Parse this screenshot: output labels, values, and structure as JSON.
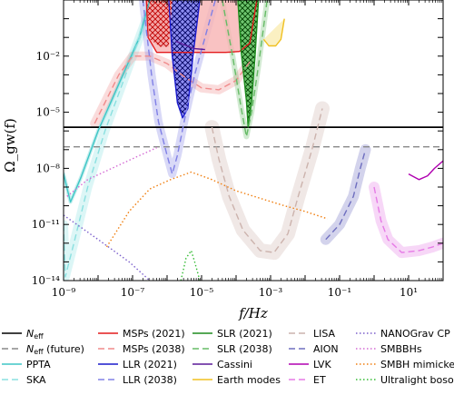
{
  "chart_data": {
    "type": "line",
    "xlabel": "f/Hz",
    "ylabel": "Ω_gw(f)",
    "xscale": "log",
    "yscale": "log",
    "xlim": [
      1e-09,
      100
    ],
    "ylim": [
      1e-14,
      10
    ],
    "x_ticks": [
      {
        "exp": -9,
        "label": "10⁻⁹"
      },
      {
        "exp": -7,
        "label": "10⁻⁷"
      },
      {
        "exp": -5,
        "label": "10⁻⁵"
      },
      {
        "exp": -3,
        "label": "10⁻³"
      },
      {
        "exp": -1,
        "label": "10⁻¹"
      },
      {
        "exp": 1,
        "label": "10¹"
      }
    ],
    "y_ticks": [
      {
        "exp": -14,
        "label": "10⁻¹⁴"
      },
      {
        "exp": -11,
        "label": "10⁻¹¹"
      },
      {
        "exp": -8,
        "label": "10⁻⁸"
      },
      {
        "exp": -5,
        "label": "10⁻⁵"
      },
      {
        "exp": -2,
        "label": "10⁻²"
      }
    ],
    "legend_placement": "below",
    "series": [
      {
        "name": "N_eff",
        "label_main": "N",
        "label_sub": "eff",
        "color": "#000000",
        "style": "solid",
        "points": [
          [
            -9,
            -5.8
          ],
          [
            2,
            -5.8
          ]
        ]
      },
      {
        "name": "N_eff (future)",
        "label_main": "N",
        "label_sub": "eff",
        "label_suffix": " (future)",
        "color": "#888888",
        "style": "dashed",
        "points": [
          [
            -9,
            -6.85
          ],
          [
            2,
            -6.85
          ]
        ]
      },
      {
        "name": "PPTA",
        "label": "PPTA",
        "color": "#3ec6c6",
        "style": "solid",
        "points": [
          [
            -9,
            -8.3
          ],
          [
            -8.8,
            -9.8
          ],
          [
            -8.5,
            -8.5
          ],
          [
            -8.0,
            -6.0
          ],
          [
            -7.4,
            -3.5
          ],
          [
            -6.8,
            -1.0
          ],
          [
            -6.5,
            1.0
          ]
        ]
      },
      {
        "name": "SKA",
        "label": "SKA",
        "color": "#8ae0e0",
        "style": "dashed",
        "points": [
          [
            -9,
            -11.0
          ],
          [
            -8.95,
            -13.8
          ],
          [
            -8.7,
            -12.0
          ],
          [
            -8.3,
            -9.0
          ],
          [
            -7.8,
            -6.0
          ],
          [
            -7.2,
            -3.0
          ],
          [
            -6.6,
            0.0
          ]
        ]
      },
      {
        "name": "MSPs (2021)",
        "label": "MSPs (2021)",
        "color": "#e31a1c",
        "style": "solid",
        "points": [
          [
            -6.6,
            1.0
          ],
          [
            -6.55,
            -1.0
          ],
          [
            -6.3,
            -1.8
          ],
          [
            -5.8,
            -1.8
          ],
          [
            -5.3,
            -1.8
          ],
          [
            -4.8,
            -1.8
          ],
          [
            -4.3,
            -1.8
          ],
          [
            -3.9,
            -1.75
          ],
          [
            -3.6,
            -1.3
          ],
          [
            -3.4,
            1.0
          ]
        ]
      },
      {
        "name": "MSPs (2038)",
        "label": "MSPs (2038)",
        "color": "#f08a8a",
        "style": "dashed",
        "points": [
          [
            -8.1,
            -5.6
          ],
          [
            -7.4,
            -3.0
          ],
          [
            -7.0,
            -2.0
          ],
          [
            -6.5,
            -2.0
          ],
          [
            -6.0,
            -2.4
          ],
          [
            -5.5,
            -3.1
          ],
          [
            -5.0,
            -3.7
          ],
          [
            -4.5,
            -3.8
          ],
          [
            -4.0,
            -3.3
          ],
          [
            -3.6,
            -2.3
          ]
        ]
      },
      {
        "name": "LLR (2021)",
        "label": "LLR (2021)",
        "color": "#1a1acc",
        "style": "solid",
        "points": [
          [
            -5.95,
            1.0
          ],
          [
            -5.85,
            -2.0
          ],
          [
            -5.7,
            -4.5
          ],
          [
            -5.55,
            -5.3
          ],
          [
            -5.4,
            -4.8
          ],
          [
            -5.25,
            -2.0
          ],
          [
            -5.05,
            1.0
          ]
        ]
      },
      {
        "name": "LLR (2038)",
        "label": "LLR (2038)",
        "color": "#8080e6",
        "style": "dashed",
        "points": [
          [
            -6.7,
            1.0
          ],
          [
            -6.45,
            -3.0
          ],
          [
            -6.25,
            -5.5
          ],
          [
            -6.0,
            -7.3
          ],
          [
            -5.85,
            -8.3
          ],
          [
            -5.7,
            -7.3
          ],
          [
            -5.45,
            -5.0
          ],
          [
            -5.2,
            -3.0
          ],
          [
            -4.9,
            -1.0
          ],
          [
            -4.6,
            1.0
          ]
        ]
      },
      {
        "name": "SLR (2021)",
        "label": "SLR (2021)",
        "color": "#1e8c1e",
        "style": "solid",
        "points": [
          [
            -3.95,
            1.0
          ],
          [
            -3.85,
            -1.8
          ],
          [
            -3.7,
            -4.4
          ],
          [
            -3.65,
            -5.8
          ],
          [
            -3.55,
            -4.4
          ],
          [
            -3.45,
            -2.0
          ],
          [
            -3.35,
            1.0
          ]
        ]
      },
      {
        "name": "SLR (2038)",
        "label": "SLR (2038)",
        "color": "#66bb66",
        "style": "dashed",
        "points": [
          [
            -4.4,
            1.0
          ],
          [
            -4.1,
            -2.0
          ],
          [
            -3.85,
            -4.8
          ],
          [
            -3.7,
            -6.3
          ],
          [
            -3.55,
            -5.0
          ],
          [
            -3.35,
            -2.5
          ],
          [
            -3.1,
            1.0
          ]
        ]
      },
      {
        "name": "Cassini",
        "label": "Cassini",
        "color": "#5b1a99",
        "style": "solid",
        "points": [
          [
            -5.75,
            -1.2
          ],
          [
            -5.5,
            -1.4
          ],
          [
            -5.2,
            -1.6
          ],
          [
            -4.9,
            -1.65
          ]
        ]
      },
      {
        "name": "Earth modes",
        "label": "Earth modes",
        "color": "#f0c020",
        "style": "solid",
        "points": [
          [
            -3.2,
            -1.1
          ],
          [
            -3.05,
            -1.45
          ],
          [
            -2.85,
            -1.45
          ],
          [
            -2.7,
            -1.1
          ],
          [
            -2.6,
            0.0
          ]
        ]
      },
      {
        "name": "LISA",
        "label": "LISA",
        "color": "#ccb3ad",
        "style": "dashed",
        "points": [
          [
            -4.7,
            -5.8
          ],
          [
            -4.5,
            -7.5
          ],
          [
            -4.2,
            -9.5
          ],
          [
            -3.8,
            -11.3
          ],
          [
            -3.3,
            -12.4
          ],
          [
            -2.9,
            -12.5
          ],
          [
            -2.5,
            -11.5
          ],
          [
            -2.2,
            -9.5
          ],
          [
            -1.8,
            -7.0
          ],
          [
            -1.5,
            -4.8
          ]
        ]
      },
      {
        "name": "AION",
        "label": "AION",
        "color": "#6e6ebf",
        "style": "dashed",
        "points": [
          [
            -1.4,
            -11.8
          ],
          [
            -1.0,
            -11.0
          ],
          [
            -0.6,
            -9.5
          ],
          [
            -0.4,
            -8.0
          ],
          [
            -0.25,
            -7.0
          ]
        ]
      },
      {
        "name": "LVK",
        "label": "LVK",
        "color": "#b000b0",
        "style": "solid",
        "points": [
          [
            1.0,
            -8.3
          ],
          [
            1.3,
            -8.6
          ],
          [
            1.55,
            -8.4
          ],
          [
            1.75,
            -8.0
          ],
          [
            2.0,
            -7.6
          ]
        ]
      },
      {
        "name": "ET",
        "label": "ET",
        "color": "#e67ae6",
        "style": "dashed",
        "points": [
          [
            0.0,
            -9.0
          ],
          [
            0.2,
            -10.8
          ],
          [
            0.4,
            -11.8
          ],
          [
            0.8,
            -12.5
          ],
          [
            1.3,
            -12.4
          ],
          [
            1.7,
            -12.2
          ],
          [
            2.0,
            -12.0
          ]
        ]
      },
      {
        "name": "NANOGrav CP",
        "label": "NANOGrav CP",
        "color": "#7b5fcc",
        "style": "dotted",
        "points": [
          [
            -9.0,
            -10.5
          ],
          [
            -8.0,
            -11.8
          ],
          [
            -7.1,
            -13.0
          ],
          [
            -6.5,
            -14.0
          ]
        ]
      },
      {
        "name": "SMBBHs",
        "label": "SMBBHs",
        "color": "#d46ad4",
        "style": "dotted",
        "points": [
          [
            -8.9,
            -9.5
          ],
          [
            -8.3,
            -8.6
          ],
          [
            -7.6,
            -8.0
          ],
          [
            -6.9,
            -7.4
          ],
          [
            -6.3,
            -6.9
          ]
        ]
      },
      {
        "name": "SMBH mimickers",
        "label": "SMBH mimickers",
        "color": "#f07f10",
        "style": "dotted",
        "points": [
          [
            -7.75,
            -12.2
          ],
          [
            -7.1,
            -10.3
          ],
          [
            -6.5,
            -9.1
          ],
          [
            -5.9,
            -8.6
          ],
          [
            -5.3,
            -8.2
          ],
          [
            -4.7,
            -8.6
          ],
          [
            -4.0,
            -9.2
          ],
          [
            -3.3,
            -9.6
          ],
          [
            -2.6,
            -10.0
          ],
          [
            -2.0,
            -10.3
          ],
          [
            -1.35,
            -10.7
          ]
        ]
      },
      {
        "name": "Ultralight bosons",
        "label": "Ultralight bosons",
        "color": "#33bb33",
        "style": "dotted",
        "points": [
          [
            -5.6,
            -14.0
          ],
          [
            -5.45,
            -12.8
          ],
          [
            -5.3,
            -12.4
          ],
          [
            -5.2,
            -13.0
          ],
          [
            -5.05,
            -14.0
          ]
        ]
      }
    ]
  }
}
